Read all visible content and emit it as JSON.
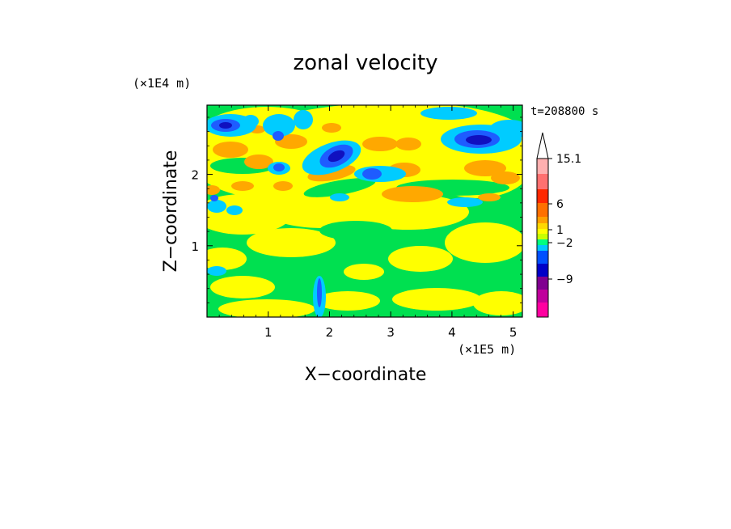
{
  "chart_data": {
    "type": "heatmap",
    "title": "zonal velocity",
    "xlabel": "X−coordinate",
    "ylabel": "Z−coordinate",
    "x_scale_label": "(×1E5 m)",
    "y_scale_label": "(×1E4 m)",
    "time_label": "t=208800 s",
    "x_ticks": [
      "1",
      "2",
      "3",
      "4",
      "5"
    ],
    "x_tick_values": [
      1,
      2,
      3,
      4,
      5
    ],
    "y_ticks": [
      "1",
      "2"
    ],
    "y_tick_values": [
      1,
      2
    ],
    "xlim": [
      0,
      5.15
    ],
    "ylim": [
      0,
      2.97
    ],
    "colorbar": {
      "labels": [
        "15.1",
        "6",
        "1",
        "−2",
        "−9"
      ],
      "colors": [
        "#ff00a0",
        "#c0009c",
        "#800090",
        "#0000c8",
        "#0050ff",
        "#00c8ff",
        "#00ff80",
        "#c8ff00",
        "#ffff00",
        "#ffd800",
        "#ffa000",
        "#ff7000",
        "#ff2800",
        "#ff7070",
        "#ffb0b0"
      ]
    },
    "field_colors": {
      "strong_negative": "#1010c0",
      "moderate_negative": "#1e5cff",
      "weak_negative": "#00ccff",
      "near_zero": "#00e050",
      "weak_positive": "#ffff00",
      "moderate_positive": "#ffa800",
      "strong_positive": "#ff7a00"
    }
  }
}
